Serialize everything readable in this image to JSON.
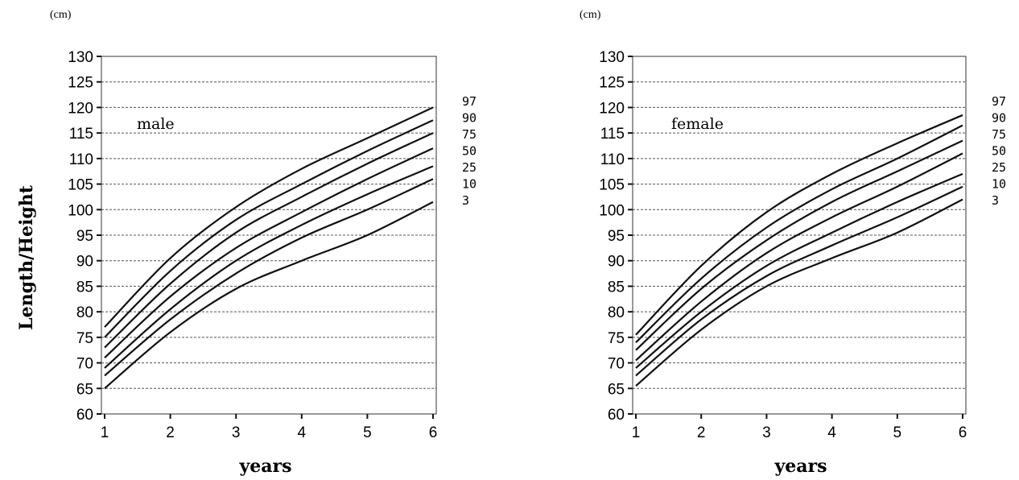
{
  "y_axis_label": "Length/Height",
  "chart_data": [
    {
      "type": "line",
      "unit": "(cm)",
      "panel_label": "male",
      "xlabel": "years",
      "xlim": [
        1,
        6
      ],
      "ylim": [
        60,
        130
      ],
      "x_ticks": [
        1,
        2,
        3,
        4,
        5,
        6
      ],
      "y_ticks": [
        60,
        65,
        70,
        75,
        80,
        85,
        90,
        95,
        100,
        105,
        110,
        115,
        120,
        125,
        130
      ],
      "grid": "horizontal dashed",
      "series_labels": [
        "97",
        "90",
        "75",
        "50",
        "25",
        "10",
        "3"
      ],
      "x": [
        1,
        2,
        3,
        4,
        5,
        6
      ],
      "series": [
        {
          "values": [
            77.0,
            90.5,
            100.5,
            108.0,
            114.0,
            120.0
          ]
        },
        {
          "values": [
            75.0,
            88.0,
            98.0,
            105.0,
            111.5,
            117.5
          ]
        },
        {
          "values": [
            73.0,
            85.5,
            95.5,
            102.5,
            109.0,
            115.0
          ]
        },
        {
          "values": [
            71.0,
            83.0,
            92.5,
            99.5,
            106.0,
            112.0
          ]
        },
        {
          "values": [
            69.0,
            80.5,
            90.0,
            97.0,
            103.0,
            108.5
          ]
        },
        {
          "values": [
            67.5,
            78.5,
            87.5,
            94.5,
            100.0,
            106.0
          ]
        },
        {
          "values": [
            65.0,
            76.0,
            84.5,
            90.0,
            95.0,
            101.5
          ]
        }
      ]
    },
    {
      "type": "line",
      "unit": "(cm)",
      "panel_label": "female",
      "xlabel": "years",
      "xlim": [
        1,
        6
      ],
      "ylim": [
        60,
        130
      ],
      "x_ticks": [
        1,
        2,
        3,
        4,
        5,
        6
      ],
      "y_ticks": [
        60,
        65,
        70,
        75,
        80,
        85,
        90,
        95,
        100,
        105,
        110,
        115,
        120,
        125,
        130
      ],
      "grid": "horizontal dashed",
      "series_labels": [
        "97",
        "90",
        "75",
        "50",
        "25",
        "10",
        "3"
      ],
      "x": [
        1,
        2,
        3,
        4,
        5,
        6
      ],
      "series": [
        {
          "values": [
            75.5,
            89.0,
            99.5,
            107.0,
            113.0,
            118.5
          ]
        },
        {
          "values": [
            74.0,
            86.5,
            96.5,
            104.0,
            110.0,
            116.5
          ]
        },
        {
          "values": [
            72.5,
            84.5,
            94.0,
            101.5,
            107.5,
            113.5
          ]
        },
        {
          "values": [
            70.5,
            82.0,
            91.5,
            98.5,
            104.5,
            111.0
          ]
        },
        {
          "values": [
            69.0,
            80.0,
            89.0,
            95.5,
            101.5,
            107.0
          ]
        },
        {
          "values": [
            67.5,
            78.5,
            87.0,
            93.0,
            98.5,
            104.5
          ]
        },
        {
          "values": [
            65.5,
            76.5,
            85.0,
            90.5,
            95.5,
            102.0
          ]
        }
      ]
    }
  ]
}
